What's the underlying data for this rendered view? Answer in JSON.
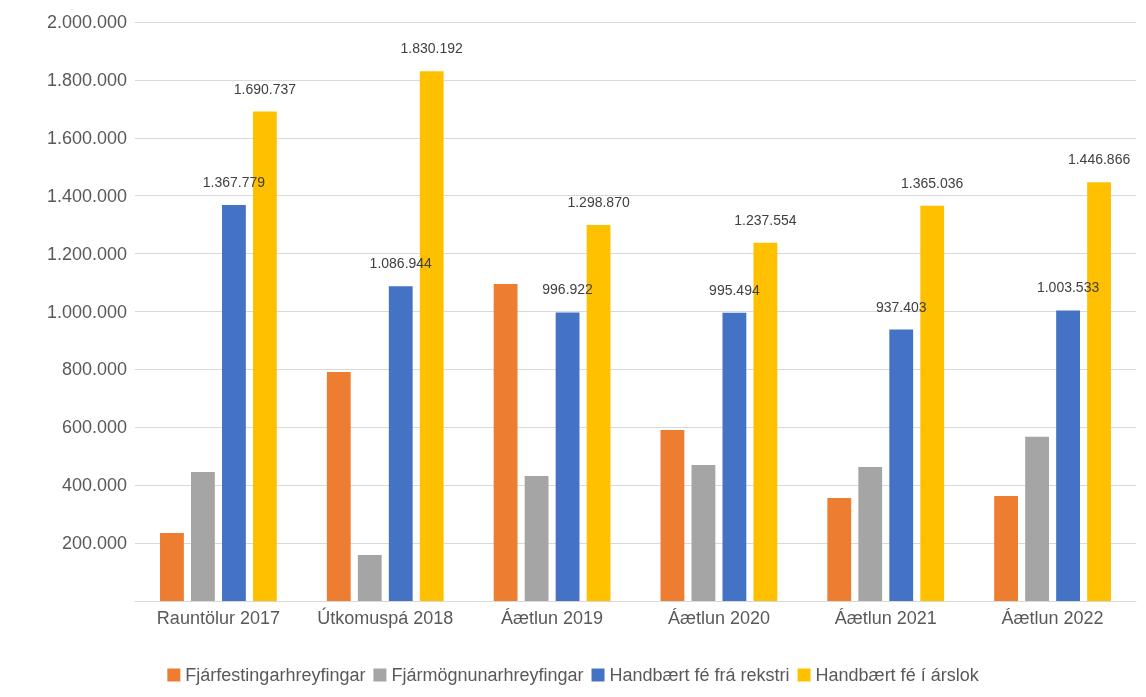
{
  "chart_data": {
    "type": "bar",
    "categories": [
      "Rauntölur 2017",
      "Útkomuspá 2018",
      "Áætlun 2019",
      "Áætlun 2020",
      "Áætlun 2021",
      "Áætlun 2022"
    ],
    "series": [
      {
        "name": "Fjárfestingarhreyfingar",
        "color": "#ed7d31",
        "values": [
          235000,
          791000,
          1095000,
          591000,
          356000,
          363000
        ]
      },
      {
        "name": "Fjármögnunarhreyfingar",
        "color": "#a5a5a5",
        "values": [
          446000,
          159000,
          432000,
          470000,
          463000,
          567000
        ]
      },
      {
        "name": "Handbært fé frá rekstri",
        "color": "#4472c4",
        "values": [
          1367779,
          1086944,
          996922,
          995494,
          937403,
          1003533
        ],
        "value_labels": [
          "1.367.779",
          "1.086.944",
          "996.922",
          "995.494",
          "937.403",
          "1.003.533"
        ]
      },
      {
        "name": "Handbært fé í árslok",
        "color": "#ffc000",
        "values": [
          1690737,
          1830192,
          1298870,
          1237554,
          1365036,
          1446866
        ],
        "value_labels": [
          "1.690.737",
          "1.830.192",
          "1.298.870",
          "1.237.554",
          "1.365.036",
          "1.446.866"
        ]
      }
    ],
    "ylim": [
      0,
      2000000
    ],
    "yticks": [
      {
        "value": 0,
        "label": null
      },
      {
        "value": 200000,
        "label": "200.000"
      },
      {
        "value": 400000,
        "label": "400.000"
      },
      {
        "value": 600000,
        "label": "600.000"
      },
      {
        "value": 800000,
        "label": "800.000"
      },
      {
        "value": 1000000,
        "label": "1.000.000"
      },
      {
        "value": 1200000,
        "label": "1.200.000"
      },
      {
        "value": 1400000,
        "label": "1.400.000"
      },
      {
        "value": 1600000,
        "label": "1.600.000"
      },
      {
        "value": 1800000,
        "label": "1.800.000"
      },
      {
        "value": 2000000,
        "label": "2.000.000"
      }
    ],
    "grid": "y",
    "legend": "bottom"
  }
}
